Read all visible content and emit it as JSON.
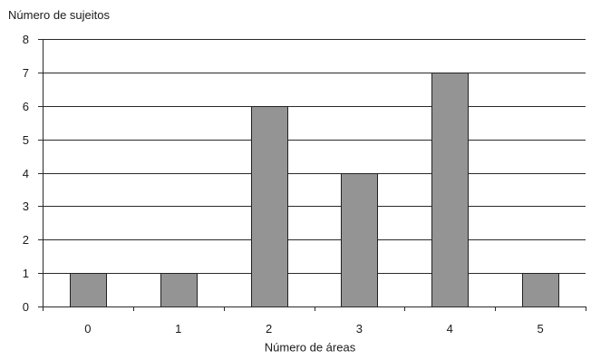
{
  "chart_data": {
    "type": "bar",
    "title": "",
    "ylabel": "Número de sujeitos",
    "xlabel": "Número de áreas",
    "categories": [
      "0",
      "1",
      "2",
      "3",
      "4",
      "5"
    ],
    "values": [
      1,
      1,
      6,
      4,
      7,
      1
    ],
    "ylim": [
      0,
      8
    ],
    "yticks": [
      "0",
      "1",
      "2",
      "3",
      "4",
      "5",
      "6",
      "7",
      "8"
    ],
    "grid": true,
    "bar_color": "#949494",
    "bar_edge_color": "#222222"
  }
}
